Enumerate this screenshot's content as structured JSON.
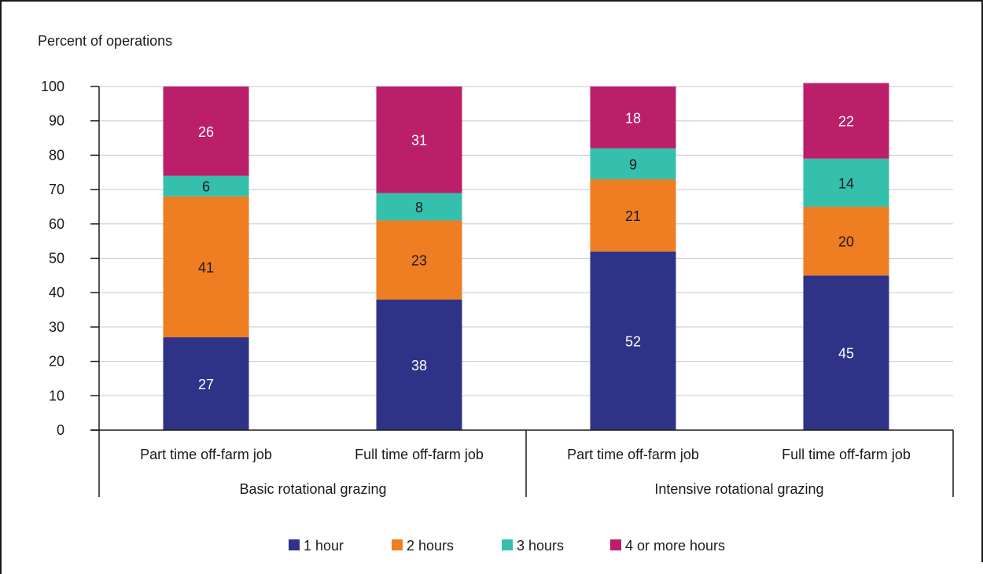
{
  "chart_data": {
    "type": "bar",
    "stacked": true,
    "ylabel": "Percent of operations",
    "ylim": [
      0,
      100
    ],
    "yticks": [
      0,
      10,
      20,
      30,
      40,
      50,
      60,
      70,
      80,
      90,
      100
    ],
    "grid": true,
    "legend_position": "bottom",
    "categories": [
      "Part time off-farm job",
      "Full time off-farm job",
      "Part time off-farm job",
      "Full time off-farm job"
    ],
    "groups": [
      {
        "label": "Basic rotational grazing",
        "category_indices": [
          0,
          1
        ]
      },
      {
        "label": "Intensive rotational grazing",
        "category_indices": [
          2,
          3
        ]
      }
    ],
    "series": [
      {
        "name": "1 hour",
        "color": "#2e3387",
        "label_color": "#ffffff",
        "values": [
          27,
          38,
          52,
          45
        ]
      },
      {
        "name": "2 hours",
        "color": "#ef7d22",
        "label_color": "#1a1a1a",
        "values": [
          41,
          23,
          21,
          20
        ]
      },
      {
        "name": "3 hours",
        "color": "#35bfad",
        "label_color": "#1a1a1a",
        "values": [
          6,
          8,
          9,
          14
        ]
      },
      {
        "name": "4 or more hours",
        "color": "#bc1f6a",
        "label_color": "#ffffff",
        "values": [
          26,
          31,
          18,
          22
        ]
      }
    ]
  }
}
